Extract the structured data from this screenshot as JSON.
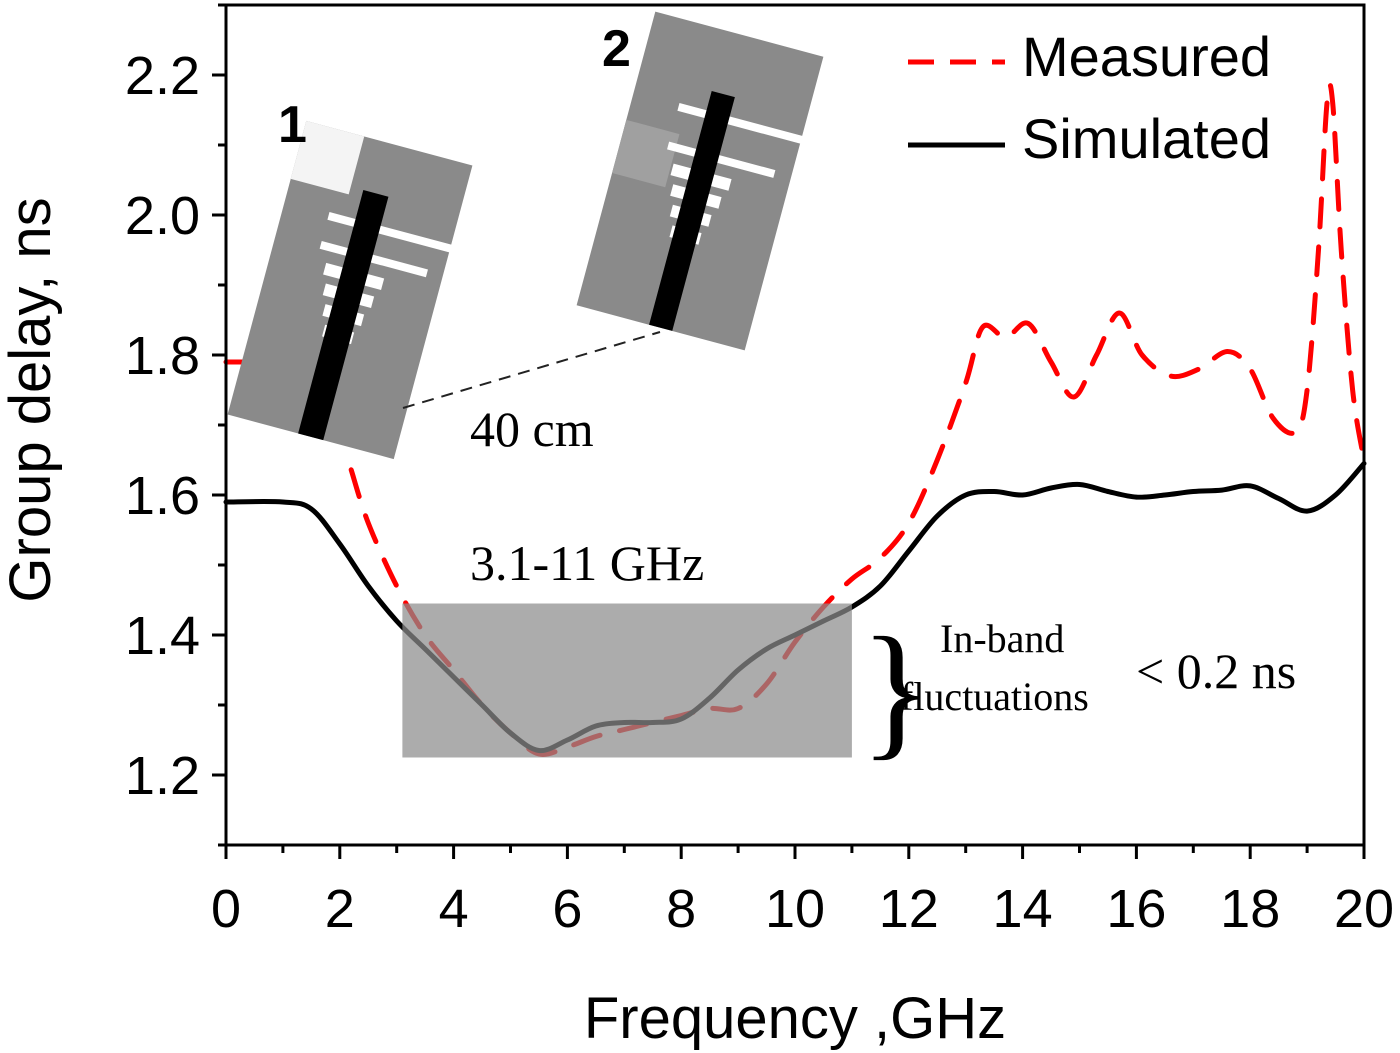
{
  "chart_data": {
    "type": "line",
    "title": "",
    "xlabel": "Frequency ,GHz",
    "ylabel": "Group delay, ns",
    "xlim": [
      0,
      20
    ],
    "ylim": [
      1.1,
      2.3
    ],
    "xticks": [
      "0",
      "2",
      "4",
      "6",
      "8",
      "10",
      "12",
      "14",
      "16",
      "18",
      "20"
    ],
    "yticks": [
      "1.2",
      "1.4",
      "1.6",
      "1.8",
      "2.0",
      "2.2"
    ],
    "legend_position": "top-right",
    "series": [
      {
        "name": "Measured",
        "style": "dashed",
        "color": "#ff0000",
        "x": [
          0,
          0.3,
          2.2,
          2.5,
          3,
          3.5,
          4,
          4.5,
          5,
          5.5,
          6,
          6.5,
          7,
          7.5,
          8,
          8.5,
          9,
          9.5,
          10,
          10.5,
          11,
          11.5,
          12,
          12.5,
          13,
          13.3,
          13.7,
          14.1,
          14.5,
          14.9,
          15.3,
          15.7,
          16.1,
          16.6,
          17.1,
          17.6,
          18,
          18.4,
          18.8,
          19,
          19.2,
          19.35,
          19.45,
          19.6,
          19.8,
          20
        ],
        "y": [
          1.79,
          1.79,
          1.636,
          1.56,
          1.47,
          1.4,
          1.35,
          1.3,
          1.26,
          1.23,
          1.24,
          1.255,
          1.265,
          1.275,
          1.285,
          1.295,
          1.295,
          1.33,
          1.39,
          1.44,
          1.48,
          1.51,
          1.56,
          1.65,
          1.76,
          1.84,
          1.825,
          1.845,
          1.79,
          1.74,
          1.8,
          1.86,
          1.8,
          1.77,
          1.78,
          1.805,
          1.78,
          1.71,
          1.69,
          1.75,
          1.95,
          2.16,
          2.16,
          1.95,
          1.75,
          1.65
        ]
      },
      {
        "name": "Simulated",
        "style": "solid",
        "color": "#000000",
        "x": [
          0,
          1,
          1.5,
          2,
          2.5,
          3,
          3.5,
          4,
          4.5,
          5,
          5.5,
          6,
          6.5,
          7,
          7.5,
          8,
          8.5,
          9,
          9.5,
          10,
          10.5,
          11,
          11.5,
          12,
          12.5,
          13,
          13.5,
          14,
          14.5,
          15,
          15.5,
          16,
          16.5,
          17,
          17.5,
          18,
          18.5,
          19,
          19.5,
          20
        ],
        "y": [
          1.59,
          1.59,
          1.58,
          1.53,
          1.47,
          1.42,
          1.38,
          1.34,
          1.3,
          1.26,
          1.235,
          1.25,
          1.27,
          1.275,
          1.275,
          1.28,
          1.31,
          1.35,
          1.38,
          1.4,
          1.42,
          1.44,
          1.47,
          1.52,
          1.57,
          1.6,
          1.605,
          1.6,
          1.61,
          1.615,
          1.605,
          1.597,
          1.6,
          1.605,
          1.607,
          1.613,
          1.595,
          1.577,
          1.6,
          1.645
        ]
      }
    ],
    "shaded_band": {
      "x": [
        3.1,
        11
      ],
      "y": [
        1.225,
        1.445
      ]
    },
    "annotations": {
      "band_label": "3.1-11 GHz",
      "distance_label": "40 cm",
      "fluct_line1": "In-band",
      "fluct_line2": "fluctuations",
      "fluct_value": "< 0.2 ns",
      "inset1_label": "1",
      "inset2_label": "2"
    }
  }
}
